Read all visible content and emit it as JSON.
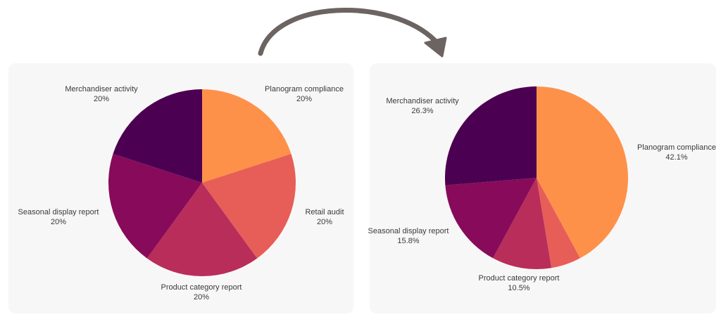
{
  "chart_data": [
    {
      "type": "pie",
      "title": "",
      "slices": [
        {
          "label": "Planogram compliance",
          "value": 20,
          "pct_label": "20%",
          "color": "#fe914a"
        },
        {
          "label": "Retail audit",
          "value": 20,
          "pct_label": "20%",
          "color": "#e65e57"
        },
        {
          "label": "Product category report",
          "value": 20,
          "pct_label": "20%",
          "color": "#b82d5a"
        },
        {
          "label": "Seasonal display report",
          "value": 20,
          "pct_label": "20%",
          "color": "#870b5a"
        },
        {
          "label": "Merchandiser activity",
          "value": 20,
          "pct_label": "20%",
          "color": "#4c0051"
        }
      ]
    },
    {
      "type": "pie",
      "title": "",
      "slices": [
        {
          "label": "Planogram compliance",
          "value": 42.1,
          "pct_label": "42.1%",
          "color": "#fe914a"
        },
        {
          "label": "Retail audit",
          "value": 5.3,
          "pct_label": "",
          "color": "#e65e57"
        },
        {
          "label": "Product category report",
          "value": 10.5,
          "pct_label": "10.5%",
          "color": "#b82d5a"
        },
        {
          "label": "Seasonal display report",
          "value": 15.8,
          "pct_label": "15.8%",
          "color": "#870b5a"
        },
        {
          "label": "Merchandiser activity",
          "value": 26.3,
          "pct_label": "26.3%",
          "color": "#4c0051"
        }
      ]
    }
  ],
  "colors": {
    "panel_background": "#f8f7f7",
    "arrow": "#6b6461",
    "label_text": "#3a3a3a"
  }
}
